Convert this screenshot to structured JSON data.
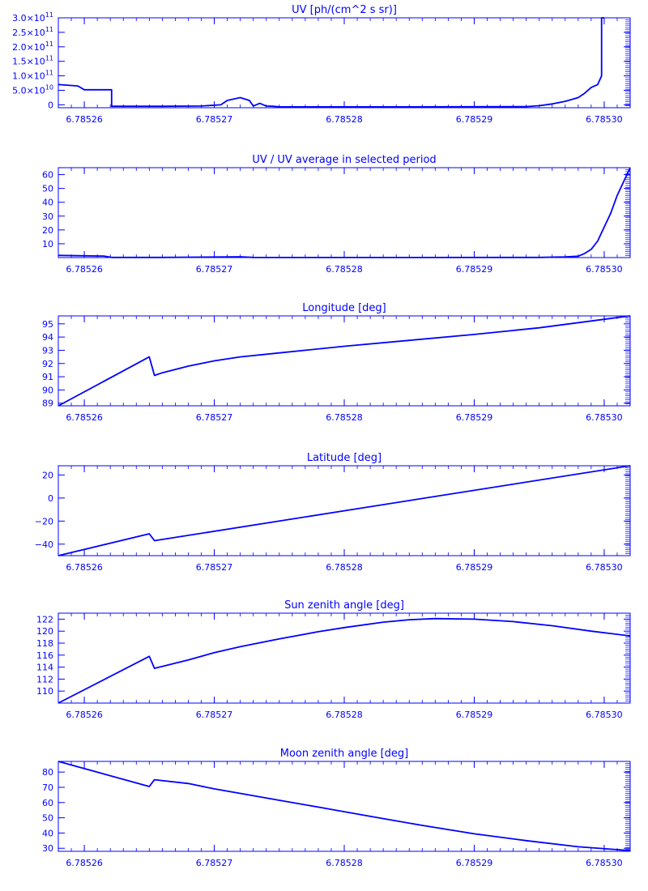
{
  "chart_data": [
    {
      "type": "line",
      "title": "UV [ph/(cm^2 s sr)]",
      "xlim": [
        6.785258,
        6.785302
      ],
      "ylim": [
        -10000000000.0,
        300000000000.0
      ],
      "xticks": [
        "6.78526",
        "6.78527",
        "6.78528",
        "6.78529",
        "6.78530"
      ],
      "yticks": [
        {
          "v": 0,
          "m": "0",
          "e": ""
        },
        {
          "v": 50000000000.0,
          "m": "5.0×10",
          "e": "10"
        },
        {
          "v": 100000000000.0,
          "m": "1.0×10",
          "e": "11"
        },
        {
          "v": 150000000000.0,
          "m": "1.5×10",
          "e": "11"
        },
        {
          "v": 200000000000.0,
          "m": "2.0×10",
          "e": "11"
        },
        {
          "v": 250000000000.0,
          "m": "2.5×10",
          "e": "11"
        },
        {
          "v": 300000000000.0,
          "m": "3.0×10",
          "e": "11"
        }
      ],
      "series": [
        {
          "x": [
            6.785258,
            6.7852595,
            6.78526,
            6.7852621,
            6.7852621,
            6.785266,
            6.785269,
            6.7852705,
            6.785271,
            6.785272,
            6.7852727,
            6.785273,
            6.7852735,
            6.785274,
            6.7852745,
            6.785275,
            6.78528,
            6.785285,
            6.785294,
            6.785295,
            6.785296,
            6.785297,
            6.785298,
            6.7852985,
            6.785299,
            6.7852995,
            6.7852998,
            6.7852998,
            6.7853
          ],
          "y": [
            70000000000.0,
            65000000000.0,
            52000000000.0,
            52000000000.0,
            -5000000000.0,
            -5000000000.0,
            -4000000000.0,
            0,
            15000000000.0,
            25000000000.0,
            15000000000.0,
            -4000000000.0,
            5000000000.0,
            -4000000000.0,
            -5000000000.0,
            -7000000000.0,
            -7000000000.0,
            -7000000000.0,
            -6000000000.0,
            -3000000000.0,
            3000000000.0,
            12000000000.0,
            25000000000.0,
            40000000000.0,
            60000000000.0,
            70000000000.0,
            100000000000.0,
            300000000000.0,
            300000000000.0
          ]
        }
      ]
    },
    {
      "type": "line",
      "title": "UV / UV average in selected period",
      "xlim": [
        6.785258,
        6.785302
      ],
      "ylim": [
        0,
        65
      ],
      "xticks": [
        "6.78526",
        "6.78527",
        "6.78528",
        "6.78529",
        "6.78530"
      ],
      "yticks": [
        {
          "v": 10,
          "m": "10",
          "e": ""
        },
        {
          "v": 20,
          "m": "20",
          "e": ""
        },
        {
          "v": 30,
          "m": "30",
          "e": ""
        },
        {
          "v": 40,
          "m": "40",
          "e": ""
        },
        {
          "v": 50,
          "m": "50",
          "e": ""
        },
        {
          "v": 60,
          "m": "60",
          "e": ""
        }
      ],
      "series": [
        {
          "x": [
            6.785258,
            6.78526,
            6.7852615,
            6.7852621,
            6.785266,
            6.785272,
            6.785273,
            6.78528,
            6.785295,
            6.785297,
            6.785298,
            6.7852985,
            6.785299,
            6.7852995,
            6.7853,
            6.7853005,
            6.785301,
            6.785302
          ],
          "y": [
            1.6,
            1.3,
            1.1,
            0.1,
            0.1,
            0.6,
            0.1,
            0.05,
            0.1,
            0.5,
            1.0,
            3.0,
            6.0,
            12.0,
            22.0,
            32.0,
            45.0,
            65.0
          ]
        }
      ]
    },
    {
      "type": "line",
      "title": "Longitude [deg]",
      "xlim": [
        6.785258,
        6.785302
      ],
      "ylim": [
        88.8,
        95.6
      ],
      "xticks": [
        "6.78526",
        "6.78527",
        "6.78528",
        "6.78529",
        "6.78530"
      ],
      "yticks": [
        {
          "v": 89,
          "m": "89",
          "e": ""
        },
        {
          "v": 90,
          "m": "90",
          "e": ""
        },
        {
          "v": 91,
          "m": "91",
          "e": ""
        },
        {
          "v": 92,
          "m": "92",
          "e": ""
        },
        {
          "v": 93,
          "m": "93",
          "e": ""
        },
        {
          "v": 94,
          "m": "94",
          "e": ""
        },
        {
          "v": 95,
          "m": "95",
          "e": ""
        }
      ],
      "series": [
        {
          "x": [
            6.785258,
            6.785265,
            6.7852654,
            6.785266,
            6.785268,
            6.78527,
            6.785272,
            6.785275,
            6.78528,
            6.785285,
            6.78529,
            6.785295,
            6.785302
          ],
          "y": [
            88.8,
            92.5,
            91.1,
            91.3,
            91.8,
            92.2,
            92.5,
            92.8,
            93.3,
            93.75,
            94.2,
            94.7,
            95.6
          ]
        }
      ]
    },
    {
      "type": "line",
      "title": "Latitude [deg]",
      "xlim": [
        6.785258,
        6.785302
      ],
      "ylim": [
        -50,
        28
      ],
      "xticks": [
        "6.78526",
        "6.78527",
        "6.78528",
        "6.78529",
        "6.78530"
      ],
      "yticks": [
        {
          "v": -40,
          "m": "−40",
          "e": ""
        },
        {
          "v": -20,
          "m": "−20",
          "e": ""
        },
        {
          "v": 0,
          "m": "0",
          "e": ""
        },
        {
          "v": 20,
          "m": "20",
          "e": ""
        }
      ],
      "series": [
        {
          "x": [
            6.785258,
            6.785265,
            6.7852654,
            6.785302
          ],
          "y": [
            -50,
            -31,
            -37,
            28
          ]
        }
      ]
    },
    {
      "type": "line",
      "title": "Sun zenith angle [deg]",
      "xlim": [
        6.785258,
        6.785302
      ],
      "ylim": [
        108,
        123
      ],
      "xticks": [
        "6.78526",
        "6.78527",
        "6.78528",
        "6.78529",
        "6.78530"
      ],
      "yticks": [
        {
          "v": 110,
          "m": "110",
          "e": ""
        },
        {
          "v": 112,
          "m": "112",
          "e": ""
        },
        {
          "v": 114,
          "m": "114",
          "e": ""
        },
        {
          "v": 116,
          "m": "116",
          "e": ""
        },
        {
          "v": 118,
          "m": "118",
          "e": ""
        },
        {
          "v": 120,
          "m": "120",
          "e": ""
        },
        {
          "v": 122,
          "m": "122",
          "e": ""
        }
      ],
      "series": [
        {
          "x": [
            6.785258,
            6.785265,
            6.7852654,
            6.785268,
            6.78527,
            6.785272,
            6.785275,
            6.785278,
            6.78528,
            6.785283,
            6.785285,
            6.785287,
            6.78529,
            6.785293,
            6.785296,
            6.785299,
            6.785302
          ],
          "y": [
            108,
            115.8,
            113.8,
            115.2,
            116.4,
            117.4,
            118.7,
            119.9,
            120.6,
            121.5,
            121.9,
            122.1,
            122.0,
            121.6,
            120.9,
            120.0,
            119.2
          ]
        }
      ]
    },
    {
      "type": "line",
      "title": "Moon zenith angle [deg]",
      "xlim": [
        6.785258,
        6.785302
      ],
      "ylim": [
        28,
        87
      ],
      "xticks": [
        "6.78526",
        "6.78527",
        "6.78528",
        "6.78529",
        "6.78530"
      ],
      "yticks": [
        {
          "v": 30,
          "m": "30",
          "e": ""
        },
        {
          "v": 40,
          "m": "40",
          "e": ""
        },
        {
          "v": 50,
          "m": "50",
          "e": ""
        },
        {
          "v": 60,
          "m": "60",
          "e": ""
        },
        {
          "v": 70,
          "m": "70",
          "e": ""
        },
        {
          "v": 80,
          "m": "80",
          "e": ""
        }
      ],
      "series": [
        {
          "x": [
            6.785258,
            6.785265,
            6.7852654,
            6.785268,
            6.78527,
            6.785272,
            6.785275,
            6.785278,
            6.78528,
            6.785283,
            6.785286,
            6.78529,
            6.785294,
            6.785298,
            6.785302
          ],
          "y": [
            87,
            70.5,
            75,
            72.5,
            69,
            66,
            61.5,
            57,
            54,
            49.5,
            45,
            39.5,
            35,
            31,
            28.5
          ]
        }
      ]
    }
  ],
  "colors": {
    "ink": "#0000ff",
    "background": "#ffffff"
  }
}
